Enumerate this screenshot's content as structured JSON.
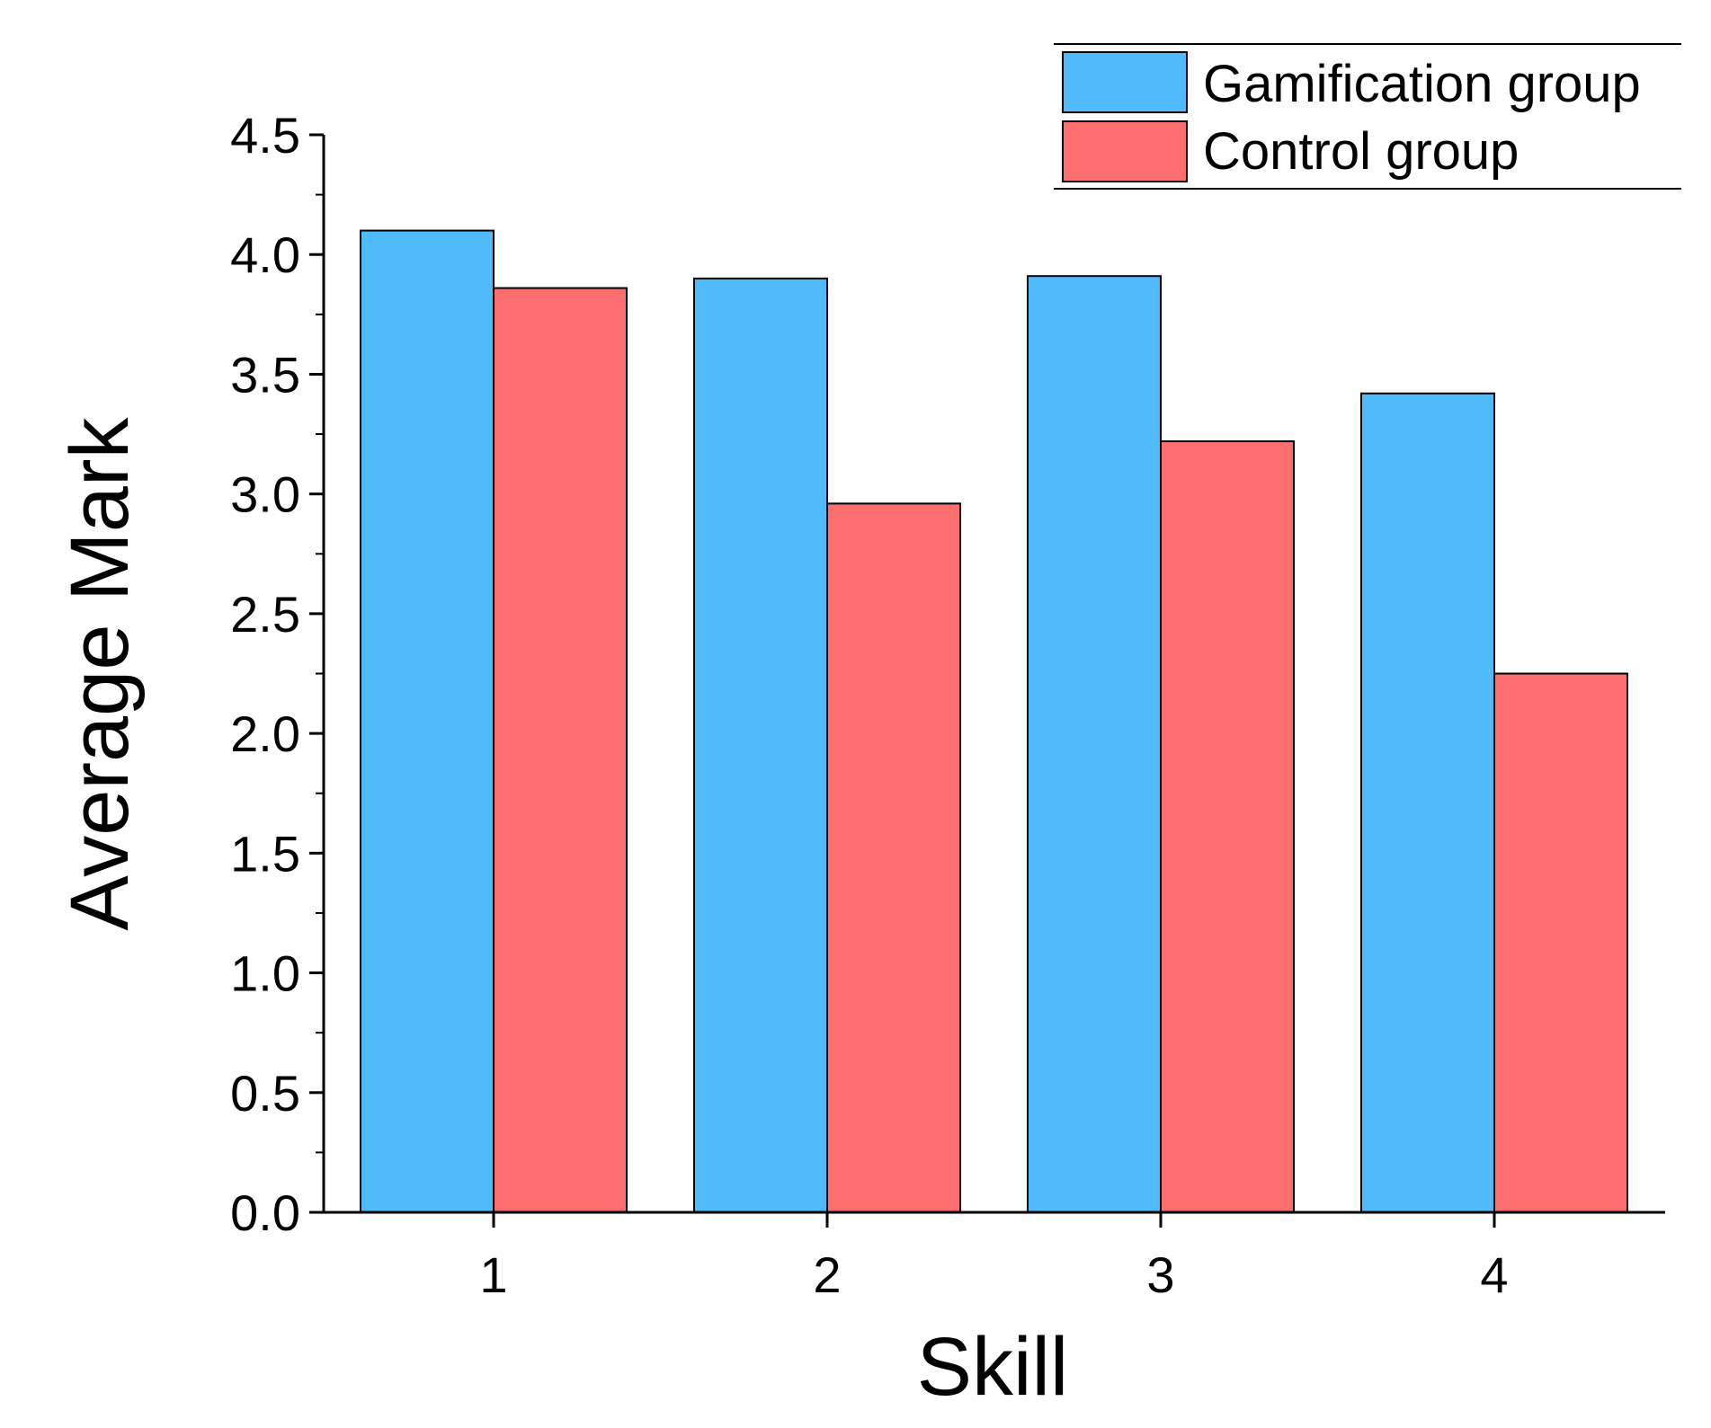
{
  "chart_data": {
    "type": "bar",
    "categories": [
      "1",
      "2",
      "3",
      "4"
    ],
    "series": [
      {
        "name": "Gamification group",
        "color": "#4fbbfd",
        "values": [
          4.1,
          3.9,
          3.91,
          3.42
        ]
      },
      {
        "name": "Control group",
        "color": "#fd6f6f",
        "values": [
          3.86,
          2.96,
          3.22,
          2.25
        ]
      }
    ],
    "xlabel": "Skill",
    "ylabel": "Average Mark",
    "ylim": [
      0,
      4.5
    ],
    "yticks": [
      "0.0",
      "0.5",
      "1.0",
      "1.5",
      "2.0",
      "2.5",
      "3.0",
      "3.5",
      "4.0",
      "4.5"
    ],
    "grid": false,
    "legend_position": "top-right"
  }
}
